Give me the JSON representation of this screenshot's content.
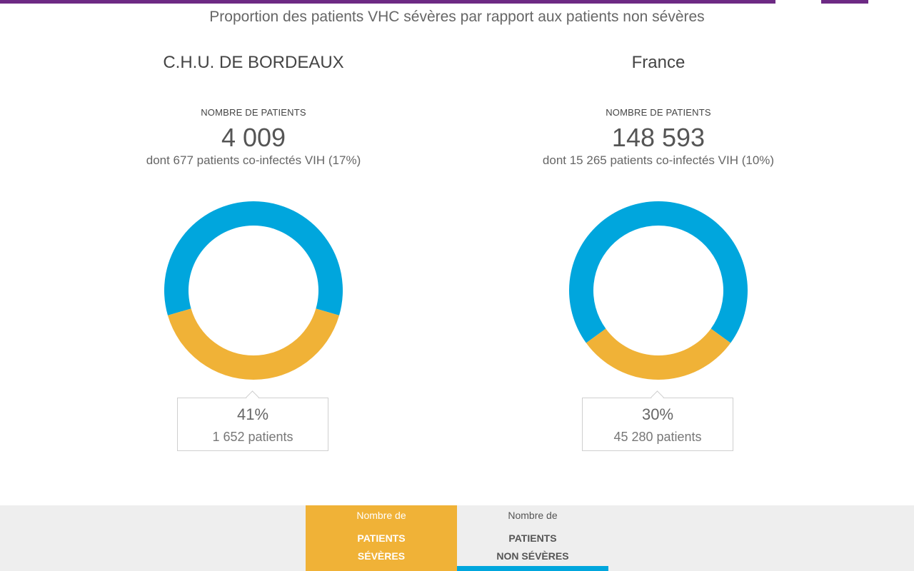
{
  "header": {
    "subtitle": "Proportion des patients VHC sévères par rapport aux patients non sévères"
  },
  "colors": {
    "brand": "#6d2a84",
    "severe": "#f0b237",
    "non_severe": "#00a6dd"
  },
  "panels": [
    {
      "title": "C.H.U. DE BORDEAUX",
      "metric_label": "NOMBRE DE PATIENTS",
      "metric_value": "4 009",
      "metric_sub": "dont 677 patients co-infectés VIH (17%)",
      "callout_pct": "41%",
      "callout_count": "1 652 patients"
    },
    {
      "title": "France",
      "metric_label": "NOMBRE DE PATIENTS",
      "metric_value": "148 593",
      "metric_sub": "dont 15 265 patients co-infectés VIH (10%)",
      "callout_pct": "30%",
      "callout_count": "45 280 patients"
    }
  ],
  "legend": {
    "severe_line1": "Nombre de",
    "severe_line2": "PATIENTS",
    "severe_line3": "SÉVÈRES",
    "nonsevere_line1": "Nombre de",
    "nonsevere_line2": "PATIENTS",
    "nonsevere_line3": "NON SÉVÈRES"
  },
  "chart_data": [
    {
      "type": "pie",
      "title": "C.H.U. DE BORDEAUX",
      "categories": [
        "PATIENTS SÉVÈRES",
        "PATIENTS NON SÉVÈRES"
      ],
      "values": [
        41,
        59
      ],
      "counts": [
        1652,
        2357
      ],
      "total": 4009,
      "colors": [
        "#f0b237",
        "#00a6dd"
      ]
    },
    {
      "type": "pie",
      "title": "France",
      "categories": [
        "PATIENTS SÉVÈRES",
        "PATIENTS NON SÉVÈRES"
      ],
      "values": [
        30,
        70
      ],
      "counts": [
        45280,
        103313
      ],
      "total": 148593,
      "colors": [
        "#f0b237",
        "#00a6dd"
      ]
    }
  ]
}
